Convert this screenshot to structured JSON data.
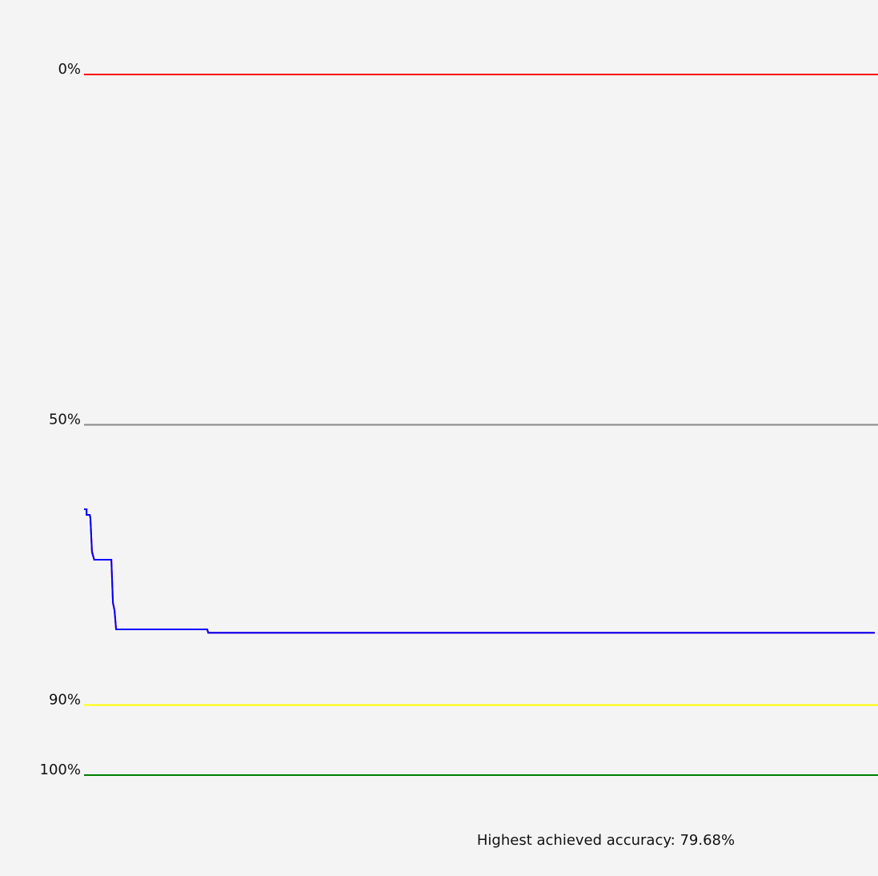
{
  "chart_data": {
    "type": "line",
    "invert_y": true,
    "ylim": [
      0,
      100
    ],
    "yticks": [
      {
        "value": 0,
        "label": "0%"
      },
      {
        "value": 50,
        "label": "50%"
      },
      {
        "value": 90,
        "label": "90%"
      },
      {
        "value": 100,
        "label": "100%"
      }
    ],
    "ytick_colors": [
      "#ff0000",
      "#888888",
      "#ffff00",
      "#008000"
    ],
    "xlim": [
      0,
      250
    ],
    "x": [
      0,
      0.8,
      0.8,
      1.8,
      2.0,
      2.5,
      3.2,
      8.6,
      9.1,
      9.6,
      10.1,
      38.8,
      39.1,
      249
    ],
    "series": [
      {
        "color": "#ff0000",
        "values": [
          62.06,
          62.06,
          62.86,
          62.86,
          63.3,
          68.0,
          69.26,
          69.26,
          75.4,
          76.5,
          79.2,
          79.2,
          79.68,
          79.68
        ]
      },
      {
        "color": "#0000ff",
        "values": [
          62.06,
          62.06,
          62.86,
          62.86,
          63.3,
          68.2,
          69.26,
          69.26,
          75.4,
          76.5,
          79.2,
          79.2,
          79.68,
          79.68
        ]
      }
    ],
    "annotation": "Highest achieved accuracy: 79.68%"
  }
}
